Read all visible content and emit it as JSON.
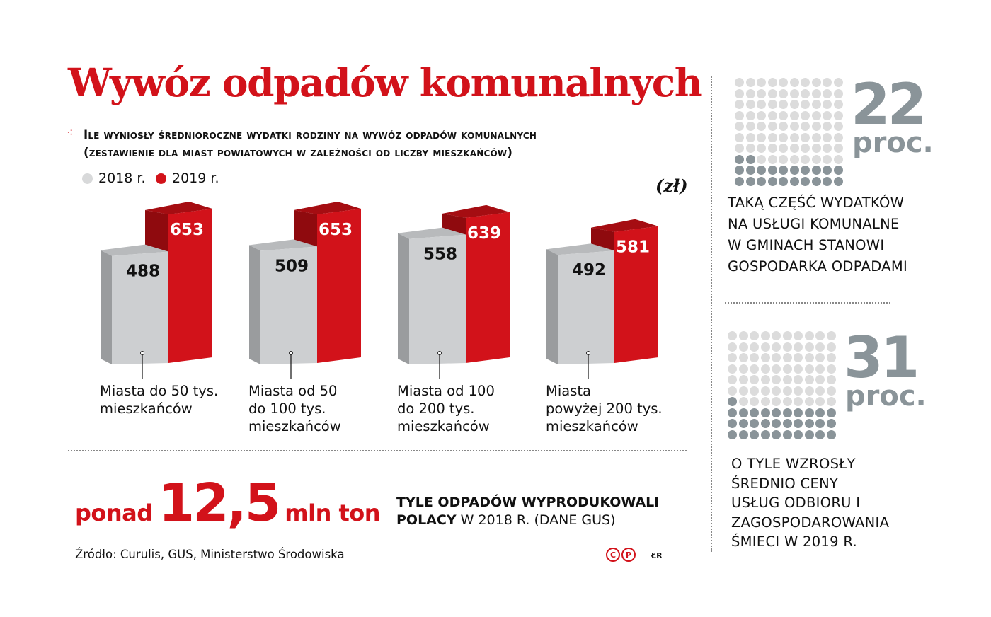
{
  "title": "Wywóz odpadów komunalnych",
  "subtitle": [
    "Ile wyniosły średnioroczne wydatki rodziny na wywóz odpadów komunalnych",
    "(zestawienie dla miast powiatowych w zależności od liczby mieszkańców)"
  ],
  "legend": [
    {
      "label": "2018 r.",
      "color": "#d8d9da"
    },
    {
      "label": "2019 r.",
      "color": "#d2121a"
    }
  ],
  "unit": "(zł)",
  "chart_data": {
    "type": "bar",
    "categories": [
      "Miasta do 50 tys. mieszkańców",
      "Miasta od 50 do 100 tys. mieszkańców",
      "Miasta od 100 do 200 tys. mieszkańców",
      "Miasta powyżej 200 tys. mieszkańców"
    ],
    "category_lines": [
      [
        "Miasta do 50 tys.",
        "mieszkańców"
      ],
      [
        "Miasta od 50",
        "do 100 tys.",
        "mieszkańców"
      ],
      [
        "Miasta od 100",
        "do 200 tys.",
        "mieszkańców"
      ],
      [
        "Miasta",
        "powyżej 200 tys.",
        "mieszkańców"
      ]
    ],
    "series": [
      {
        "name": "2018 r.",
        "values": [
          488,
          509,
          558,
          492
        ],
        "color": "#c9cbcd"
      },
      {
        "name": "2019 r.",
        "values": [
          653,
          653,
          639,
          581
        ],
        "color": "#d2121a"
      }
    ],
    "ylabel": "(zł)",
    "grid": false,
    "legend_position": "top-left"
  },
  "highlight": {
    "prefix": "ponad",
    "number": "12,5",
    "suffix": "mln ton",
    "desc_bold_1": "TYLE ODPADÓW WYPRODUKOWALI",
    "desc_bold_2": "POLACY",
    "desc_rest": " W 2018 R. (DANE GUS)"
  },
  "source": "Źródło: Curulis, GUS, Ministerstwo Środowiska",
  "author": "ŁR",
  "stats": [
    {
      "number": "22",
      "unit": "proc.",
      "percent": 22,
      "text": [
        "TAKĄ CZĘŚĆ WYDATKÓW",
        "NA USŁUGI  KOMUNALNE",
        "W GMINACH STANOWI",
        "GOSPODARKA ODPADAMI"
      ]
    },
    {
      "number": "31",
      "unit": "proc.",
      "percent": 31,
      "text": [
        "O TYLE WZROSŁY",
        "ŚREDNIO CENY",
        "USŁUG  ODBIORU I",
        "ZAGOSPODAROWANIA",
        "ŚMIECI W 2019 R."
      ]
    }
  ]
}
